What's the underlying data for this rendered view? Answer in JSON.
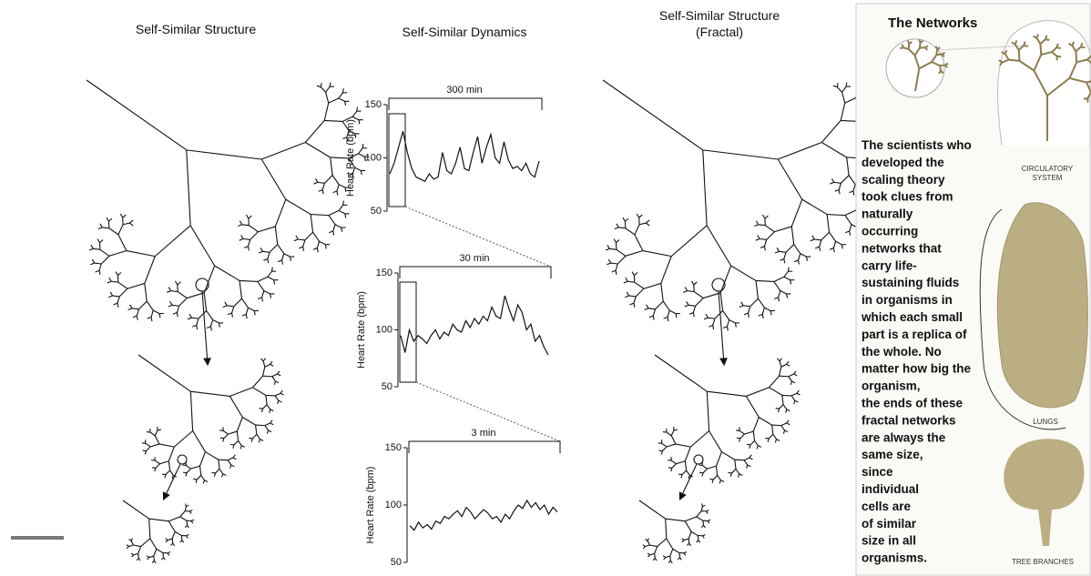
{
  "left_panel": {
    "title": "Self-Similar Structure"
  },
  "middle_title": "Self-Similar Dynamics",
  "chart_data": [
    {
      "type": "line",
      "span_label": "300 min",
      "y_label": "Heart Rate (bpm)",
      "ylim": [
        50,
        150
      ],
      "yticks": [
        50,
        100,
        150
      ],
      "values": [
        85,
        95,
        110,
        125,
        105,
        90,
        82,
        80,
        78,
        85,
        80,
        82,
        105,
        88,
        85,
        95,
        110,
        90,
        88,
        105,
        120,
        95,
        110,
        122,
        100,
        95,
        115,
        98,
        90,
        92,
        88,
        95,
        85,
        82,
        97
      ]
    },
    {
      "type": "line",
      "span_label": "30 min",
      "y_label": "Heart Rate (bpm)",
      "ylim": [
        50,
        150
      ],
      "yticks": [
        50,
        100,
        150
      ],
      "values": [
        95,
        80,
        100,
        90,
        95,
        92,
        88,
        95,
        100,
        92,
        98,
        95,
        105,
        100,
        98,
        108,
        102,
        110,
        105,
        112,
        108,
        120,
        112,
        110,
        130,
        118,
        108,
        122,
        115,
        100,
        105,
        90,
        95,
        85,
        78
      ]
    },
    {
      "type": "line",
      "span_label": "3 min",
      "y_label": "Heart Rate (bpm)",
      "ylim": [
        50,
        150
      ],
      "yticks": [
        50,
        100,
        150
      ],
      "values": [
        82,
        78,
        85,
        80,
        83,
        79,
        86,
        84,
        90,
        88,
        92,
        95,
        90,
        98,
        94,
        88,
        92,
        96,
        93,
        88,
        90,
        85,
        92,
        88,
        95,
        100,
        97,
        104,
        98,
        102,
        96,
        100,
        92,
        98,
        94
      ]
    }
  ],
  "right_panel": {
    "title": "Self-Similar Structure",
    "subtitle": "(Fractal)"
  },
  "sidebar": {
    "title": "The Networks",
    "text_lines": [
      "The scientists who",
      "developed the",
      "scaling theory",
      "took clues from",
      "naturally",
      "occurring",
      "networks that",
      "carry life-",
      "sustaining fluids",
      "in organisms in",
      "which each small",
      "part is a replica of",
      "the whole. No",
      "matter how big the",
      "organism,",
      "the ends of these",
      "fractal networks",
      "are always the",
      "same size,",
      "since",
      "individual",
      "cells are",
      "of similar",
      "size in all",
      "organisms."
    ],
    "labels": {
      "circulatory": [
        "CIRCULATORY",
        "SYSTEM"
      ],
      "lungs": "LUNGS",
      "tree": "TREE BRANCHES"
    }
  }
}
